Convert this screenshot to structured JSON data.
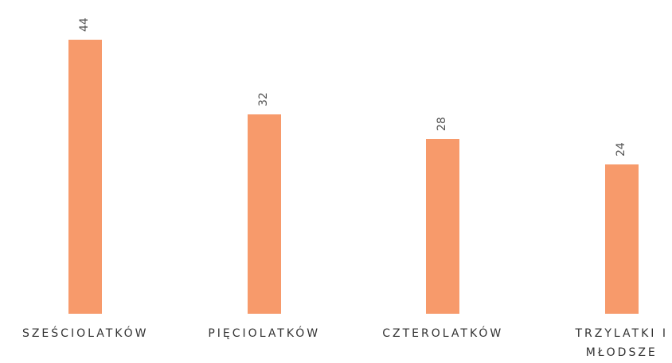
{
  "chart_data": {
    "type": "bar",
    "categories": [
      "SZEŚCIOLATKÓW",
      "PIĘCIOLATKÓW",
      "CZTEROLATKÓW",
      "TRZYLATKI I MŁODSZE"
    ],
    "values": [
      44,
      32,
      28,
      24
    ],
    "color": "#f79a6b"
  }
}
